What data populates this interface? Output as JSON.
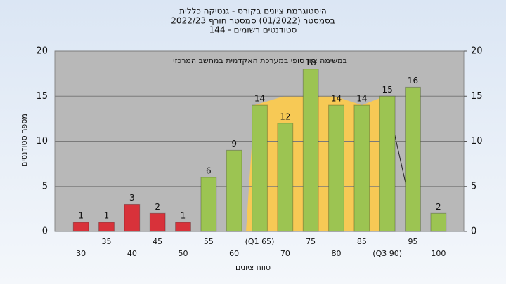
{
  "chart_data": {
    "type": "bar",
    "title": "היסטוגרמת ציונים בקורס - גנטיקה כללית",
    "subtitle": "בסמסטר  (01/2022)  סמסטר חורף 2022/23",
    "subtitle2": "סטודנטים רשומים - 144",
    "annotation": "במשימה ציון סופי במערכת האקדמית במחשב המרכזי",
    "x_label": "טווח ציונים",
    "y_label": "מספר סטודנטים",
    "categories": [
      "30",
      "35",
      "40",
      "45",
      "50",
      "55",
      "60",
      "(Q1 65)",
      "70",
      "75",
      "80",
      "85",
      "(Q3 90)",
      "95",
      "100"
    ],
    "values": [
      1,
      1,
      3,
      2,
      1,
      6,
      9,
      14,
      12,
      18,
      14,
      14,
      15,
      16,
      2
    ],
    "colors": [
      "#d8323a",
      "#d8323a",
      "#d8323a",
      "#d8323a",
      "#d8323a",
      "#9cc452",
      "#9cc452",
      "#9cc452",
      "#9cc452",
      "#9cc452",
      "#9cc452",
      "#9cc452",
      "#9cc452",
      "#9cc452",
      "#9cc452"
    ],
    "ylim": [
      0,
      20
    ],
    "yticks": [
      0,
      5,
      10,
      15,
      20
    ],
    "y2lim": [
      0,
      20
    ],
    "y2ticks": [
      0,
      5,
      10,
      15,
      20
    ],
    "grid": true
  }
}
